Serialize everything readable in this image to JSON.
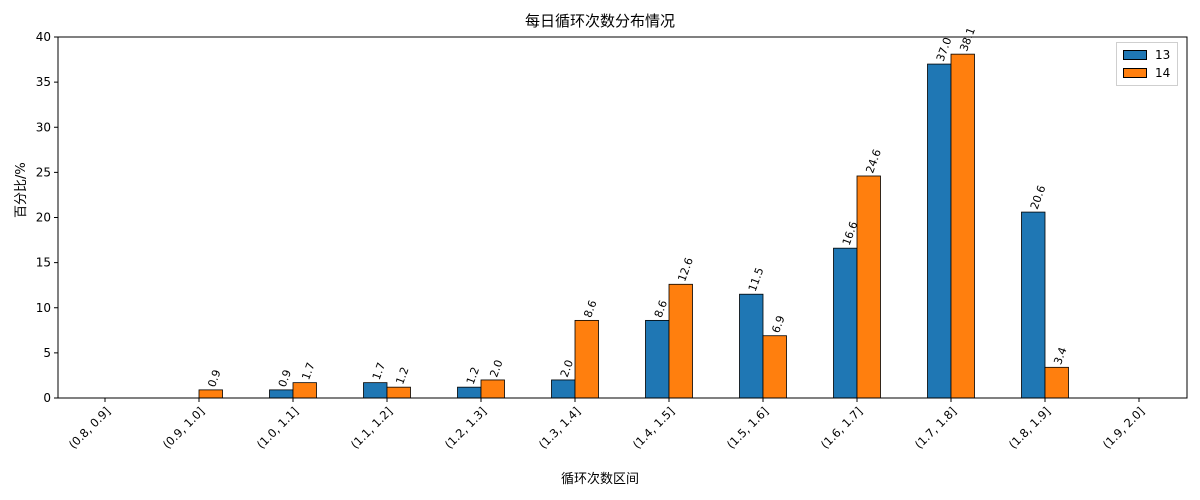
{
  "chart_data": {
    "type": "bar",
    "title": "每日循环次数分布情况",
    "xlabel": "循环次数区间",
    "ylabel": "百分比/%",
    "ylim": [
      0,
      40
    ],
    "yticks": [
      0,
      5,
      10,
      15,
      20,
      25,
      30,
      35,
      40
    ],
    "categories": [
      "(0.8, 0.9]",
      "(0.9, 1.0]",
      "(1.0, 1.1]",
      "(1.1, 1.2]",
      "(1.2, 1.3]",
      "(1.3, 1.4]",
      "(1.4, 1.5]",
      "(1.5, 1.6]",
      "(1.6, 1.7]",
      "(1.7, 1.8]",
      "(1.8, 1.9]",
      "(1.9, 2.0]"
    ],
    "series": [
      {
        "name": "13",
        "color": "#1f77b4",
        "values": [
          0,
          0,
          0.9,
          1.7,
          1.2,
          2.0,
          8.6,
          11.5,
          16.6,
          37.0,
          20.6,
          0
        ]
      },
      {
        "name": "14",
        "color": "#ff7f0e",
        "values": [
          0,
          0.9,
          1.7,
          1.2,
          2.0,
          8.6,
          12.6,
          6.9,
          24.6,
          38.1,
          3.4,
          0
        ]
      }
    ],
    "data_labels": [
      [
        "",
        "",
        "0.9",
        "1.7",
        "1.2",
        "2.0",
        "8.6",
        "11.5",
        "16.6",
        "37.0",
        "20.6",
        ""
      ],
      [
        "",
        "0.9",
        "1.7",
        "1.2",
        "2.0",
        "8.6",
        "12.6",
        "6.9",
        "24.6",
        "38.1",
        "3.4",
        ""
      ]
    ],
    "legend": "top-right",
    "grid": false
  }
}
